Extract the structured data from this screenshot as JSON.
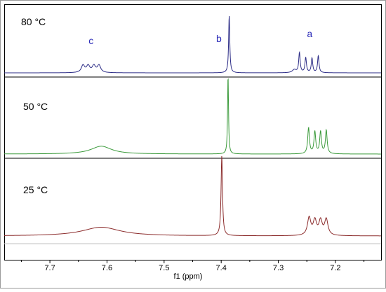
{
  "chart_data": {
    "type": "line",
    "title": "",
    "xlabel": "f1 (ppm)",
    "ylabel": "",
    "x_reversed": true,
    "xlim": [
      7.78,
      7.12
    ],
    "x_ticks": [
      7.7,
      7.6,
      7.5,
      7.4,
      7.3,
      7.2
    ],
    "x_tick_labels": [
      "7.7",
      "7.6",
      "7.5",
      "7.4",
      "7.3",
      "7.2"
    ],
    "grid": false,
    "series": [
      {
        "name": "80 °C",
        "color": "#2b2b86",
        "peaks": [
          {
            "ppm": 7.642,
            "height": 0.12,
            "width": 0.0035
          },
          {
            "ppm": 7.633,
            "height": 0.11,
            "width": 0.0035
          },
          {
            "ppm": 7.623,
            "height": 0.11,
            "width": 0.0035
          },
          {
            "ppm": 7.614,
            "height": 0.12,
            "width": 0.0035
          },
          {
            "ppm": 7.386,
            "height": 0.95,
            "width": 0.0012
          },
          {
            "ppm": 7.263,
            "height": 0.33,
            "width": 0.0015
          },
          {
            "ppm": 7.252,
            "height": 0.25,
            "width": 0.0015
          },
          {
            "ppm": 7.241,
            "height": 0.24,
            "width": 0.0015
          },
          {
            "ppm": 7.23,
            "height": 0.28,
            "width": 0.0015
          },
          {
            "ppm": 7.272,
            "height": 0.05,
            "width": 0.004
          }
        ]
      },
      {
        "name": "50 °C",
        "color": "#3a9a3a",
        "peaks": [
          {
            "ppm": 7.61,
            "height": 0.1,
            "width": 0.022
          },
          {
            "ppm": 7.388,
            "height": 1.0,
            "width": 0.001
          },
          {
            "ppm": 7.247,
            "height": 0.33,
            "width": 0.0018
          },
          {
            "ppm": 7.236,
            "height": 0.28,
            "width": 0.0018
          },
          {
            "ppm": 7.226,
            "height": 0.28,
            "width": 0.0018
          },
          {
            "ppm": 7.216,
            "height": 0.3,
            "width": 0.0018
          }
        ]
      },
      {
        "name": "25 °C",
        "color": "#8b2b2b",
        "peaks": [
          {
            "ppm": 7.61,
            "height": 0.11,
            "width": 0.04
          },
          {
            "ppm": 7.399,
            "height": 1.0,
            "width": 0.0015
          },
          {
            "ppm": 7.246,
            "height": 0.22,
            "width": 0.0035
          },
          {
            "ppm": 7.236,
            "height": 0.18,
            "width": 0.0035
          },
          {
            "ppm": 7.226,
            "height": 0.18,
            "width": 0.0035
          },
          {
            "ppm": 7.216,
            "height": 0.2,
            "width": 0.0035
          }
        ]
      }
    ],
    "annotations": [
      {
        "text": "c",
        "ppm": 7.628,
        "series": "80 °C"
      },
      {
        "text": "b",
        "ppm": 7.404,
        "series": "80 °C"
      },
      {
        "text": "a",
        "ppm": 7.245,
        "series": "80 °C"
      }
    ],
    "annotation_color": "#2b2bb8"
  }
}
